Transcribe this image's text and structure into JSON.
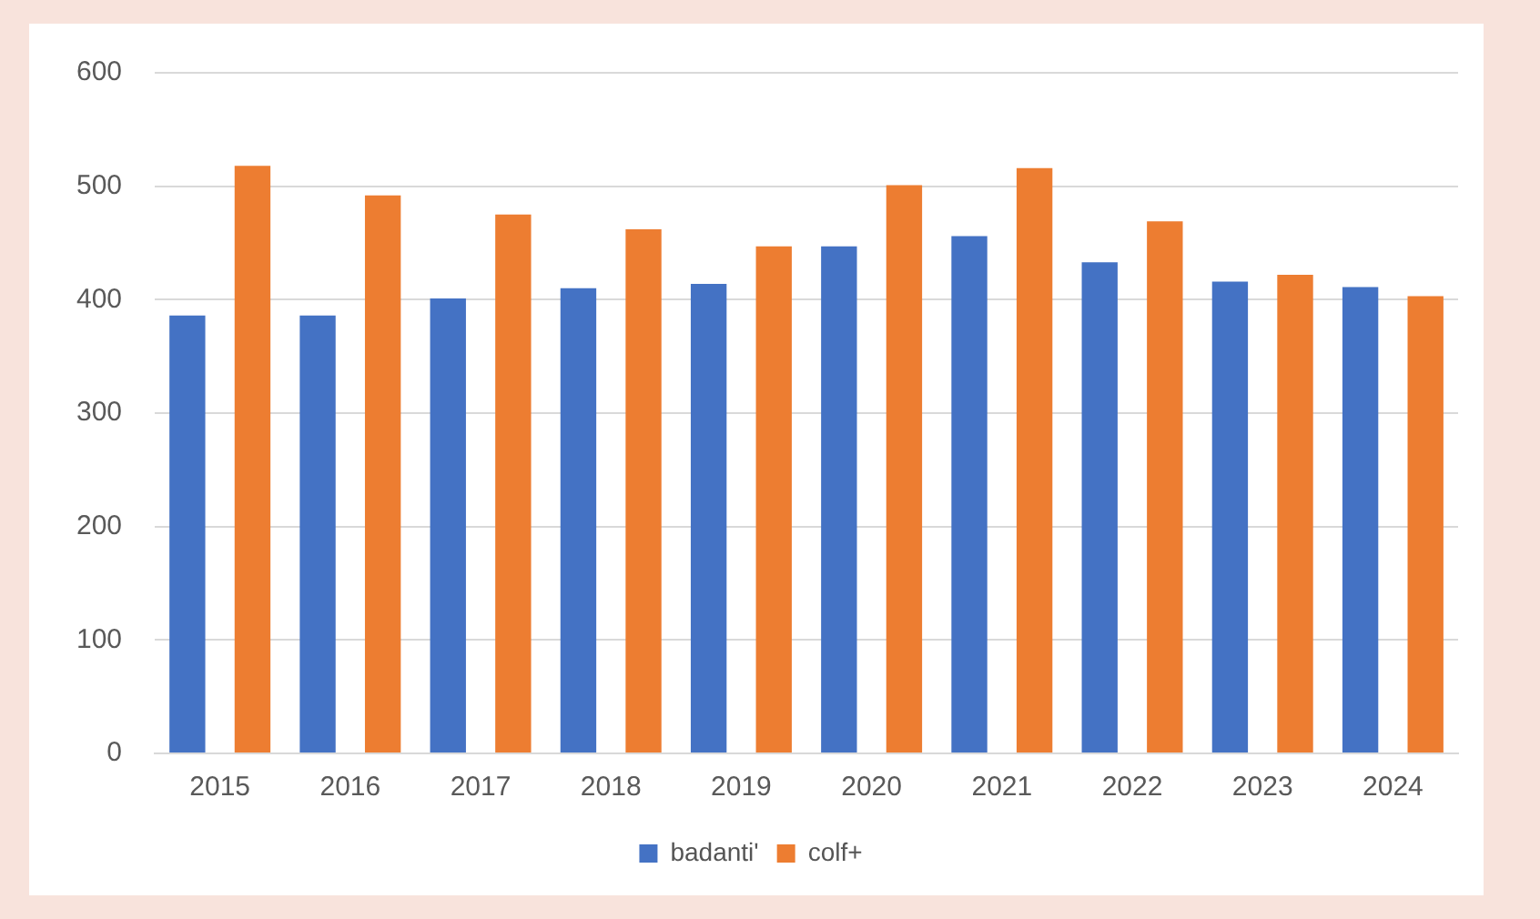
{
  "chart_data": {
    "type": "bar",
    "categories": [
      "2015",
      "2016",
      "2017",
      "2018",
      "2019",
      "2020",
      "2021",
      "2022",
      "2023",
      "2024"
    ],
    "series": [
      {
        "name": "badanti'",
        "color": "#4472c4",
        "values": [
          386,
          386,
          401,
          410,
          414,
          447,
          456,
          433,
          416,
          411
        ]
      },
      {
        "name": "colf+",
        "color": "#ed7d31",
        "values": [
          518,
          492,
          475,
          462,
          447,
          501,
          516,
          469,
          422,
          403
        ]
      }
    ],
    "ylim": [
      0,
      600
    ],
    "yticks": [
      0,
      100,
      200,
      300,
      400,
      500,
      600
    ],
    "grid": "y",
    "legend": "bottom"
  }
}
